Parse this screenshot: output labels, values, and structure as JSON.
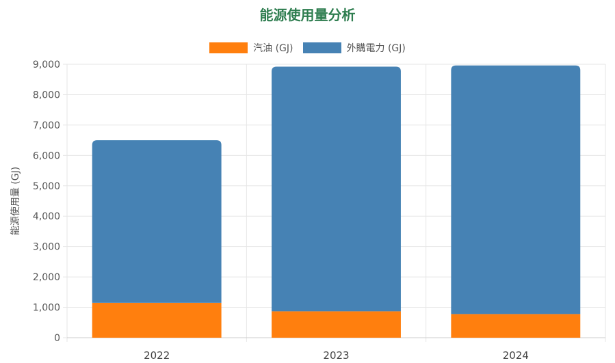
{
  "chart_data": {
    "type": "bar",
    "stacked": true,
    "title": "能源使用量分析",
    "ylabel": "能源使用量 (GJ)",
    "xlabel": "",
    "categories": [
      "2022",
      "2023",
      "2024"
    ],
    "series": [
      {
        "name": "汽油 (GJ)",
        "color": "#ff7f0e",
        "values": [
          1150,
          870,
          780
        ]
      },
      {
        "name": "外購電力 (GJ)",
        "color": "#4682b4",
        "values": [
          5350,
          8050,
          8180
        ]
      }
    ],
    "ylim": [
      0,
      9000
    ],
    "yticks": [
      "0",
      "1,000",
      "2,000",
      "3,000",
      "4,000",
      "5,000",
      "6,000",
      "7,000",
      "8,000",
      "9,000"
    ],
    "grid": true,
    "legend_position": "top-center",
    "title_color": "#2e7d4f"
  }
}
